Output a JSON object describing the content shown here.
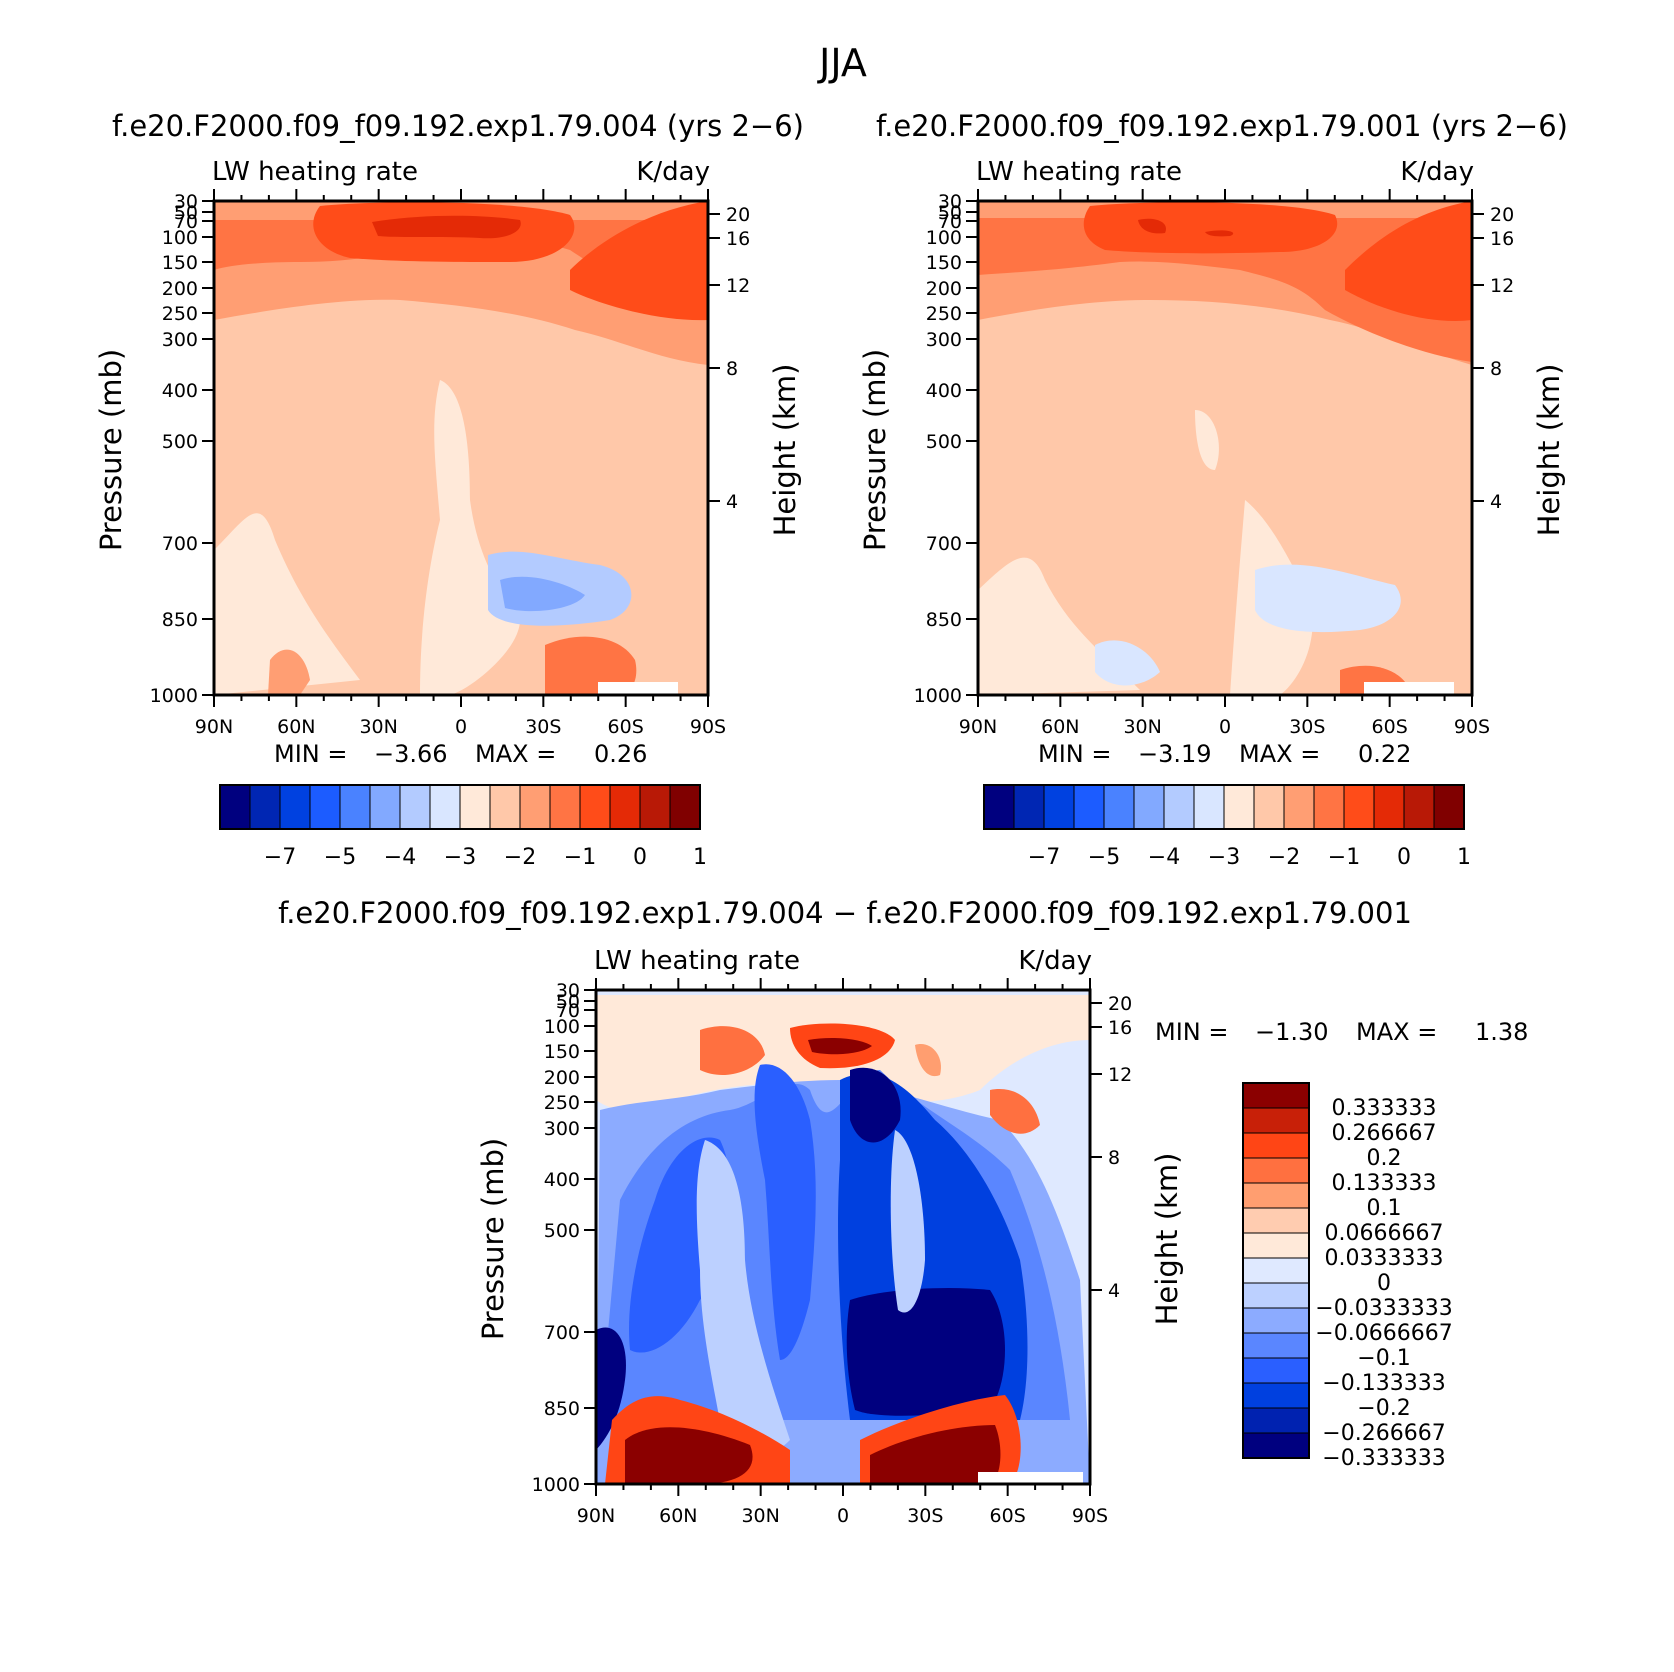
{
  "figure": {
    "title": "JJA"
  },
  "colors": {
    "abs_palette": [
      "#00007f",
      "#0026b3",
      "#0041e0",
      "#1c5cff",
      "#4a82ff",
      "#82a9ff",
      "#b3cbff",
      "#d9e6ff",
      "#ffe9d9",
      "#ffc8a9",
      "#ff9e73",
      "#ff7444",
      "#ff4c19",
      "#e42a06",
      "#b81906",
      "#800000"
    ],
    "diff_palette": [
      "#00007f",
      "#0022b0",
      "#0040df",
      "#2a5fff",
      "#5a86ff",
      "#8cabff",
      "#bcd0ff",
      "#dfe9ff",
      "#ffe9d9",
      "#ffccb0",
      "#ff9e70",
      "#ff7040",
      "#ff4515",
      "#c82008",
      "#8b0000"
    ]
  },
  "chart_data": [
    {
      "type": "heatmap",
      "subtitle": "f.e20.F2000.f09_f09.192.exp1.79.004 (yrs 2−6)",
      "left_title": "LW heating rate",
      "right_title": "K/day",
      "ylabel": "Pressure (mb)",
      "ylabel_right": "Height (km)",
      "x_ticks": [
        "90N",
        "60N",
        "30N",
        "0",
        "30S",
        "60S",
        "90S"
      ],
      "y_ticks": [
        "30",
        "50",
        "70",
        "100",
        "150",
        "200",
        "250",
        "300",
        "400",
        "500",
        "700",
        "850",
        "1000"
      ],
      "height_ticks": [
        "20",
        "16",
        "12",
        "8",
        "4"
      ],
      "min_label": "MIN =",
      "min_value": "−3.66",
      "max_label": "MAX =",
      "max_value": "0.26",
      "colorbar_labels": [
        "−7",
        "−5",
        "−4",
        "−3",
        "−2",
        "−1",
        "0",
        "1"
      ]
    },
    {
      "type": "heatmap",
      "subtitle": "f.e20.F2000.f09_f09.192.exp1.79.001 (yrs 2−6)",
      "left_title": "LW heating rate",
      "right_title": "K/day",
      "ylabel": "Pressure (mb)",
      "ylabel_right": "Height (km)",
      "x_ticks": [
        "90N",
        "60N",
        "30N",
        "0",
        "30S",
        "60S",
        "90S"
      ],
      "y_ticks": [
        "30",
        "50",
        "70",
        "100",
        "150",
        "200",
        "250",
        "300",
        "400",
        "500",
        "700",
        "850",
        "1000"
      ],
      "height_ticks": [
        "20",
        "16",
        "12",
        "8",
        "4"
      ],
      "min_label": "MIN =",
      "min_value": "−3.19",
      "max_label": "MAX =",
      "max_value": "0.22",
      "colorbar_labels": [
        "−7",
        "−5",
        "−4",
        "−3",
        "−2",
        "−1",
        "0",
        "1"
      ]
    },
    {
      "type": "heatmap",
      "subtitle": "f.e20.F2000.f09_f09.192.exp1.79.004 − f.e20.F2000.f09_f09.192.exp1.79.001",
      "left_title": "LW heating rate",
      "right_title": "K/day",
      "ylabel": "Pressure (mb)",
      "ylabel_right": "Height (km)",
      "x_ticks": [
        "90N",
        "60N",
        "30N",
        "0",
        "30S",
        "60S",
        "90S"
      ],
      "y_ticks": [
        "30",
        "50",
        "70",
        "100",
        "150",
        "200",
        "250",
        "300",
        "400",
        "500",
        "700",
        "850",
        "1000"
      ],
      "height_ticks": [
        "20",
        "16",
        "12",
        "8",
        "4"
      ],
      "min_label": "MIN =",
      "min_value": "−1.30",
      "max_label": "MAX =",
      "max_value": "1.38",
      "colorbar_labels": [
        "0.333333",
        "0.266667",
        "0.2",
        "0.133333",
        "0.1",
        "0.0666667",
        "0.0333333",
        "0",
        "−0.0333333",
        "−0.0666667",
        "−0.1",
        "−0.133333",
        "−0.2",
        "−0.266667",
        "−0.333333"
      ]
    }
  ]
}
